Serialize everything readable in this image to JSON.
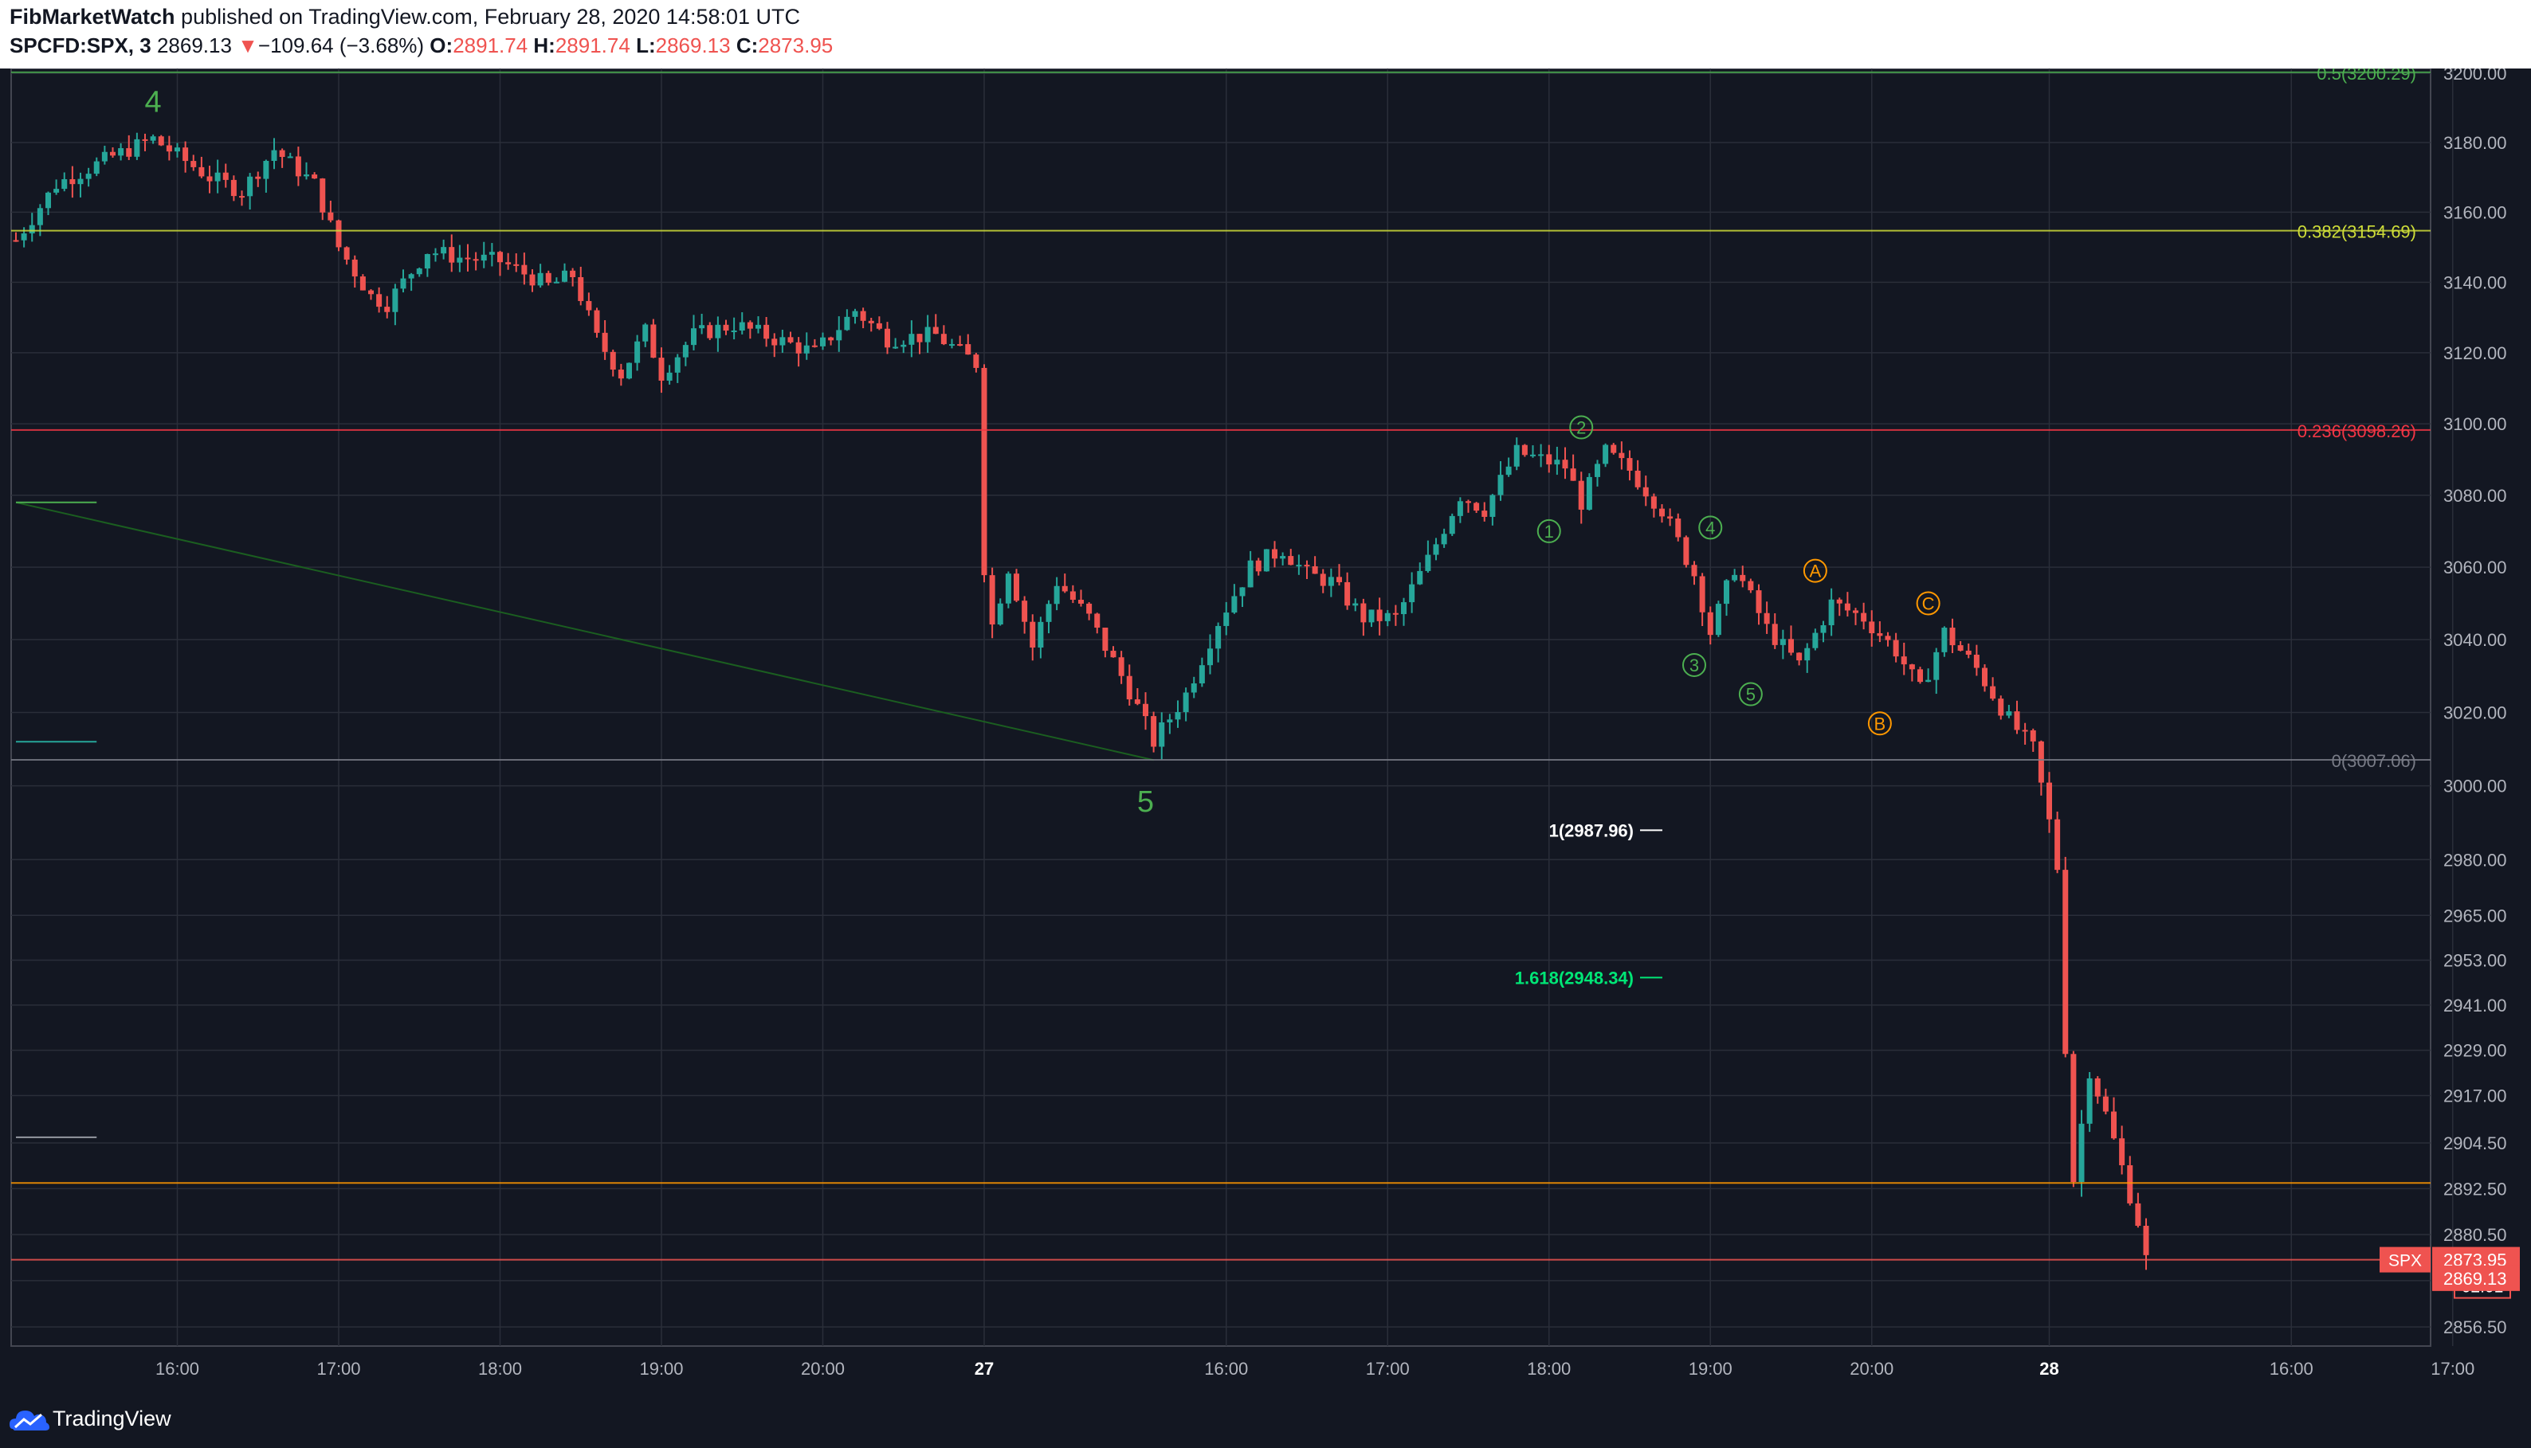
{
  "header": {
    "author": "FibMarketWatch",
    "published_text": "published on TradingView.com, February 28, 2020 14:58:01 UTC",
    "symbol": "SPCFD:SPX, 3",
    "last_price": "2869.13",
    "change_arrow": "▼",
    "change": "−109.64 (−3.68%)",
    "open_label": "O:",
    "open": "2891.74",
    "high_label": "H:",
    "high": "2891.74",
    "low_label": "L:",
    "low": "2869.13",
    "close_label": "C:",
    "close": "2873.95"
  },
  "footer": {
    "brand": "TradingView",
    "brand_icon": "tradingview-cloud-icon"
  },
  "colors": {
    "up": "#26a69a",
    "down": "#ef5350",
    "bg": "#131722",
    "grid": "#2a2e39",
    "text": "#b2b5be",
    "wave_green": "#4caf50",
    "wave_orange": "#ff9800"
  },
  "chart_data": {
    "type": "candlestick",
    "title": "",
    "symbol": "SPCFD:SPX",
    "timeframe": "3",
    "xlabel": "",
    "ylabel": "",
    "ylim": [
      2836.5,
      3200
    ],
    "scale": "log",
    "grid": true,
    "x_ticks": [
      {
        "label": "16:00",
        "t": 16.0
      },
      {
        "label": "17:00",
        "t": 17.0
      },
      {
        "label": "18:00",
        "t": 18.0
      },
      {
        "label": "19:00",
        "t": 19.0
      },
      {
        "label": "20:00",
        "t": 20.0
      },
      {
        "label": "27",
        "t": 21.0
      },
      {
        "label": "16:00",
        "t": 22.5
      },
      {
        "label": "17:00",
        "t": 23.5
      },
      {
        "label": "18:00",
        "t": 24.5
      },
      {
        "label": "19:00",
        "t": 25.5
      },
      {
        "label": "20:00",
        "t": 26.5
      },
      {
        "label": "28",
        "t": 27.6
      },
      {
        "label": "16:00",
        "t": 29.1
      },
      {
        "label": "17:00",
        "t": 30.1
      }
    ],
    "y_ticks": [
      "3200.00",
      "3180.00",
      "3160.00",
      "3140.00",
      "3120.00",
      "3100.00",
      "3080.00",
      "3060.00",
      "3040.00",
      "3020.00",
      "3000.00",
      "2980.00",
      "2965.00",
      "2953.00",
      "2941.00",
      "2929.00",
      "2917.00",
      "2904.50",
      "2892.50",
      "2880.50",
      "2868.50",
      "2856.50"
    ],
    "close_path": [
      {
        "t": 15.0,
        "v": 3152
      },
      {
        "t": 15.25,
        "v": 3168
      },
      {
        "t": 15.6,
        "v": 3176
      },
      {
        "t": 15.85,
        "v": 3181
      },
      {
        "t": 16.2,
        "v": 3170
      },
      {
        "t": 16.4,
        "v": 3166
      },
      {
        "t": 16.6,
        "v": 3178
      },
      {
        "t": 16.85,
        "v": 3168
      },
      {
        "t": 17.0,
        "v": 3150
      },
      {
        "t": 17.2,
        "v": 3136
      },
      {
        "t": 17.3,
        "v": 3134
      },
      {
        "t": 17.55,
        "v": 3149
      },
      {
        "t": 17.75,
        "v": 3147
      },
      {
        "t": 18.0,
        "v": 3146
      },
      {
        "t": 18.3,
        "v": 3139
      },
      {
        "t": 18.45,
        "v": 3142
      },
      {
        "t": 18.6,
        "v": 3124
      },
      {
        "t": 18.75,
        "v": 3114
      },
      {
        "t": 18.9,
        "v": 3126
      },
      {
        "t": 19.0,
        "v": 3114
      },
      {
        "t": 19.2,
        "v": 3125
      },
      {
        "t": 19.45,
        "v": 3128
      },
      {
        "t": 19.7,
        "v": 3124
      },
      {
        "t": 19.95,
        "v": 3120
      },
      {
        "t": 20.2,
        "v": 3132
      },
      {
        "t": 20.4,
        "v": 3124
      },
      {
        "t": 20.7,
        "v": 3125
      },
      {
        "t": 20.95,
        "v": 3117
      },
      {
        "t": 21.0,
        "v": 3060
      },
      {
        "t": 21.05,
        "v": 3044
      },
      {
        "t": 21.15,
        "v": 3060
      },
      {
        "t": 21.3,
        "v": 3038
      },
      {
        "t": 21.45,
        "v": 3056
      },
      {
        "t": 21.65,
        "v": 3046
      },
      {
        "t": 21.9,
        "v": 3026
      },
      {
        "t": 22.05,
        "v": 3012
      },
      {
        "t": 22.25,
        "v": 3025
      },
      {
        "t": 22.45,
        "v": 3045
      },
      {
        "t": 22.65,
        "v": 3060
      },
      {
        "t": 22.85,
        "v": 3065
      },
      {
        "t": 23.0,
        "v": 3058
      },
      {
        "t": 23.15,
        "v": 3056
      },
      {
        "t": 23.35,
        "v": 3046
      },
      {
        "t": 23.55,
        "v": 3046
      },
      {
        "t": 23.75,
        "v": 3062
      },
      {
        "t": 23.95,
        "v": 3080
      },
      {
        "t": 24.1,
        "v": 3076
      },
      {
        "t": 24.3,
        "v": 3092
      },
      {
        "t": 24.45,
        "v": 3090
      },
      {
        "t": 24.6,
        "v": 3088
      },
      {
        "t": 24.7,
        "v": 3078
      },
      {
        "t": 24.85,
        "v": 3092
      },
      {
        "t": 25.0,
        "v": 3087
      },
      {
        "t": 25.2,
        "v": 3076
      },
      {
        "t": 25.4,
        "v": 3058
      },
      {
        "t": 25.5,
        "v": 3042
      },
      {
        "t": 25.65,
        "v": 3060
      },
      {
        "t": 25.85,
        "v": 3043
      },
      {
        "t": 26.05,
        "v": 3033
      },
      {
        "t": 26.25,
        "v": 3050
      },
      {
        "t": 26.45,
        "v": 3046
      },
      {
        "t": 26.65,
        "v": 3037
      },
      {
        "t": 26.8,
        "v": 3026
      },
      {
        "t": 26.95,
        "v": 3042
      },
      {
        "t": 27.15,
        "v": 3032
      },
      {
        "t": 27.35,
        "v": 3018
      },
      {
        "t": 27.5,
        "v": 3010
      },
      {
        "t": 27.6,
        "v": 2990
      },
      {
        "t": 27.65,
        "v": 2978
      },
      {
        "t": 27.7,
        "v": 2930
      },
      {
        "t": 27.75,
        "v": 2895
      },
      {
        "t": 27.85,
        "v": 2924
      },
      {
        "t": 27.95,
        "v": 2912
      },
      {
        "t": 28.05,
        "v": 2898
      },
      {
        "t": 28.15,
        "v": 2884
      },
      {
        "t": 28.2,
        "v": 2873.95
      }
    ],
    "horizontal_lines": [
      {
        "label": "0.5(3200.29)",
        "value": 3200.29,
        "color": "#4caf50"
      },
      {
        "label": "0.382(3154.69)",
        "value": 3154.69,
        "color": "#cddc39"
      },
      {
        "label": "0.236(3098.26)",
        "value": 3098.26,
        "color": "#f23645"
      },
      {
        "label": "0(3007.06)",
        "value": 3007.06,
        "color": "#787b86"
      },
      {
        "label": "",
        "value": 2894.0,
        "color": "#ff9800"
      },
      {
        "label": "",
        "value": 2873.95,
        "color": "#ef5350"
      }
    ],
    "extension_markers": [
      {
        "label": "1(2987.96)",
        "value": 2987.96,
        "color": "#ffffff"
      },
      {
        "label": "1.618(2948.34)",
        "value": 2948.34,
        "color": "#00e676"
      }
    ],
    "trendline": {
      "from": {
        "t": 15.0,
        "v": 3078
      },
      "to": {
        "t": 22.05,
        "v": 3007
      },
      "color": "#1b5e20"
    },
    "wave_labels": [
      {
        "text": "4",
        "t": 15.85,
        "v": 3192,
        "style": "plain",
        "color": "#4caf50"
      },
      {
        "text": "5",
        "t": 22.0,
        "v": 2996,
        "style": "plain",
        "color": "#4caf50"
      },
      {
        "text": "1",
        "t": 24.5,
        "v": 3070,
        "style": "circle",
        "color": "#4caf50"
      },
      {
        "text": "2",
        "t": 24.7,
        "v": 3099,
        "style": "circle",
        "color": "#4caf50"
      },
      {
        "text": "3",
        "t": 25.4,
        "v": 3033,
        "style": "circle",
        "color": "#4caf50"
      },
      {
        "text": "4",
        "t": 25.5,
        "v": 3071,
        "style": "circle",
        "color": "#4caf50"
      },
      {
        "text": "5",
        "t": 25.75,
        "v": 3025,
        "style": "circle",
        "color": "#4caf50"
      },
      {
        "text": "A",
        "t": 26.15,
        "v": 3059,
        "style": "circle",
        "color": "#ff9800"
      },
      {
        "text": "B",
        "t": 26.55,
        "v": 3017,
        "style": "circle",
        "color": "#ff9800"
      },
      {
        "text": "C",
        "t": 26.85,
        "v": 3050,
        "style": "circle",
        "color": "#ff9800"
      }
    ],
    "price_tags": [
      {
        "label": "SPX",
        "value": "2873.95",
        "color": "#ef5350"
      },
      {
        "label": "",
        "value": "02:01",
        "color": "#ef5350"
      },
      {
        "label": "",
        "value": "2869.13",
        "color": "#ef5350"
      }
    ]
  }
}
